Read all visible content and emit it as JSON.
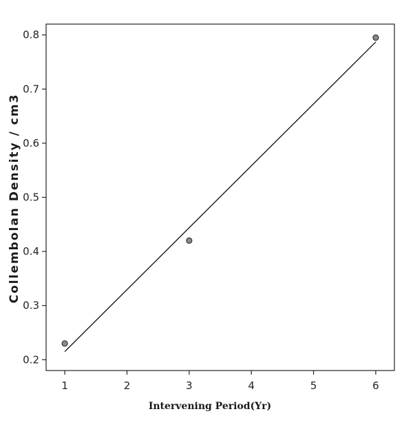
{
  "chart_data": {
    "type": "scatter",
    "title": "",
    "xlabel": "Intervening Period(Yr)",
    "ylabel": "Collembolan Density / cm3",
    "xlim": [
      0.7,
      6.3
    ],
    "ylim": [
      0.18,
      0.82
    ],
    "x_ticks": [
      1,
      2,
      3,
      4,
      5,
      6
    ],
    "x_tick_labels": [
      "1",
      "2",
      "3",
      "4",
      "5",
      "6"
    ],
    "y_ticks": [
      0.2,
      0.3,
      0.4,
      0.5,
      0.6,
      0.7,
      0.8
    ],
    "y_tick_labels": [
      "0.2",
      "0.3",
      "0.4",
      "0.5",
      "0.6",
      "0.7",
      "0.8"
    ],
    "grid": false,
    "series": [
      {
        "type": "scatter",
        "x": [
          1,
          3,
          6
        ],
        "y": [
          0.23,
          0.42,
          0.795
        ]
      },
      {
        "type": "line",
        "x": [
          1,
          6
        ],
        "y": [
          0.215,
          0.787
        ]
      }
    ],
    "colors": {
      "axes": "#222222",
      "line": "#1a1a1a",
      "marker_fill": "#8a8a8a",
      "marker_edge": "#333333"
    }
  }
}
